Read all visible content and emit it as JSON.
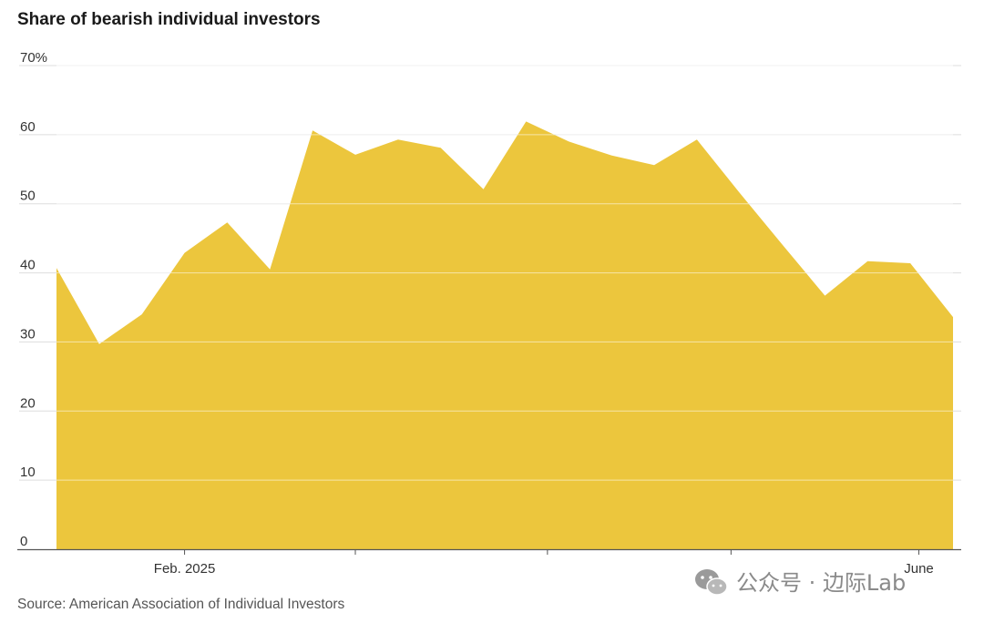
{
  "chart_data": {
    "type": "area",
    "title": "Share of bearish individual investors",
    "ylim": [
      0,
      70
    ],
    "y_ticks": [
      {
        "value": 0,
        "label": "0"
      },
      {
        "value": 10,
        "label": "10"
      },
      {
        "value": 20,
        "label": "20"
      },
      {
        "value": 30,
        "label": "30"
      },
      {
        "value": 40,
        "label": "40"
      },
      {
        "value": 50,
        "label": "50"
      },
      {
        "value": 60,
        "label": "60"
      },
      {
        "value": 70,
        "label": "70%"
      }
    ],
    "x_ticks": [
      {
        "index": 3,
        "label": "Feb. 2025"
      },
      {
        "index": 7,
        "label": ""
      },
      {
        "index": 11.5,
        "label": ""
      },
      {
        "index": 15.8,
        "label": ""
      },
      {
        "index": 20.2,
        "label": "June"
      }
    ],
    "values": [
      40.7,
      29.7,
      34.0,
      42.9,
      47.3,
      40.5,
      60.6,
      57.1,
      59.3,
      58.1,
      52.1,
      61.9,
      59.0,
      57.0,
      55.6,
      59.3,
      51.6,
      44.1,
      36.7,
      41.7,
      41.4,
      33.6
    ],
    "series_color": "#ECC63D",
    "grid": true
  },
  "source_text": "Source: American Association of Individual Investors",
  "watermark": {
    "text": "公众号 · 边际Lab",
    "icon": "wechat-icon"
  }
}
